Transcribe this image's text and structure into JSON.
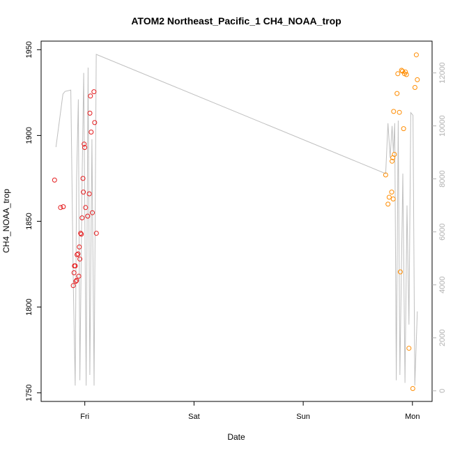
{
  "chart_data": {
    "type": "scatter",
    "title": "ATOM2 Northeast_Pacific_1 CH4_NOAA_trop",
    "xlabel": "Date",
    "ylabel": "CH4_NOAA_trop",
    "x_ticks": [
      {
        "label": "Fri",
        "t": 1.0
      },
      {
        "label": "Sat",
        "t": 2.0
      },
      {
        "label": "Sun",
        "t": 3.0
      },
      {
        "label": "Mon",
        "t": 4.0
      }
    ],
    "xlim": [
      0.6,
      4.18
    ],
    "ylim": [
      1745,
      1955
    ],
    "y_ticks": [
      1750,
      1800,
      1850,
      1900,
      1950
    ],
    "y2_ticks": [
      0,
      2000,
      4000,
      6000,
      8000,
      10000,
      12000
    ],
    "y2lim": [
      -400,
      13200
    ],
    "colors": {
      "series1": "#e41a1c",
      "series2": "#ff8c00",
      "altitude_line": "#bfbfbf",
      "right_axis": "#b0b0b0"
    },
    "series": [
      {
        "color": "#e41a1c",
        "points": [
          [
            0.723,
            1874
          ],
          [
            0.778,
            1858
          ],
          [
            0.803,
            1858.5
          ],
          [
            0.894,
            1812.5
          ],
          [
            0.901,
            1820
          ],
          [
            0.905,
            1824
          ],
          [
            0.913,
            1824
          ],
          [
            0.918,
            1815
          ],
          [
            0.924,
            1815.5
          ],
          [
            0.929,
            1830.5
          ],
          [
            0.938,
            1831
          ],
          [
            0.945,
            1818
          ],
          [
            0.95,
            1835
          ],
          [
            0.955,
            1828
          ],
          [
            0.962,
            1843
          ],
          [
            0.968,
            1842.5
          ],
          [
            0.975,
            1852
          ],
          [
            0.983,
            1875
          ],
          [
            0.987,
            1867
          ],
          [
            0.994,
            1895
          ],
          [
            0.999,
            1893
          ],
          [
            1.007,
            1858
          ],
          [
            1.026,
            1853
          ],
          [
            1.041,
            1866
          ],
          [
            1.047,
            1913
          ],
          [
            1.052,
            1923
          ],
          [
            1.058,
            1902
          ],
          [
            1.069,
            1855
          ],
          [
            1.084,
            1925.5
          ],
          [
            1.09,
            1907.5
          ],
          [
            1.106,
            1843
          ]
        ]
      },
      {
        "color": "#ff8c00",
        "points": [
          [
            3.755,
            1877
          ],
          [
            3.776,
            1860
          ],
          [
            3.787,
            1864
          ],
          [
            3.81,
            1867
          ],
          [
            3.814,
            1885
          ],
          [
            3.82,
            1887
          ],
          [
            3.824,
            1863
          ],
          [
            3.828,
            1914
          ],
          [
            3.835,
            1889
          ],
          [
            3.859,
            1924.5
          ],
          [
            3.866,
            1936
          ],
          [
            3.881,
            1913.5
          ],
          [
            3.889,
            1820.5
          ],
          [
            3.9,
            1938
          ],
          [
            3.909,
            1937.5
          ],
          [
            3.919,
            1904
          ],
          [
            3.927,
            1936
          ],
          [
            3.936,
            1937
          ],
          [
            3.945,
            1935.5
          ],
          [
            3.968,
            1776
          ],
          [
            4.003,
            1752.5
          ],
          [
            4.023,
            1928
          ],
          [
            4.036,
            1947
          ],
          [
            4.045,
            1932.5
          ]
        ]
      }
    ],
    "altitude_line": [
      [
        0.736,
        9200
      ],
      [
        0.8,
        11200
      ],
      [
        0.819,
        11300
      ],
      [
        0.872,
        11350
      ],
      [
        0.895,
        4000
      ],
      [
        0.912,
        200
      ],
      [
        0.925,
        8000
      ],
      [
        0.941,
        11000
      ],
      [
        0.955,
        400
      ],
      [
        0.975,
        8000
      ],
      [
        0.99,
        12000
      ],
      [
        1.012,
        200
      ],
      [
        1.03,
        12200
      ],
      [
        1.046,
        600
      ],
      [
        1.065,
        9500
      ],
      [
        1.085,
        200
      ],
      [
        1.105,
        12700
      ],
      [
        3.755,
        8200
      ],
      [
        3.776,
        10100
      ],
      [
        3.796,
        8800
      ],
      [
        3.814,
        10000
      ],
      [
        3.826,
        9000
      ],
      [
        3.838,
        10100
      ],
      [
        3.852,
        400
      ],
      [
        3.87,
        10200
      ],
      [
        3.885,
        600
      ],
      [
        3.912,
        8200
      ],
      [
        3.932,
        300
      ],
      [
        3.95,
        7000
      ],
      [
        3.968,
        2500
      ],
      [
        3.985,
        10500
      ],
      [
        4.005,
        10400
      ],
      [
        4.022,
        200
      ],
      [
        4.045,
        3000
      ]
    ]
  }
}
